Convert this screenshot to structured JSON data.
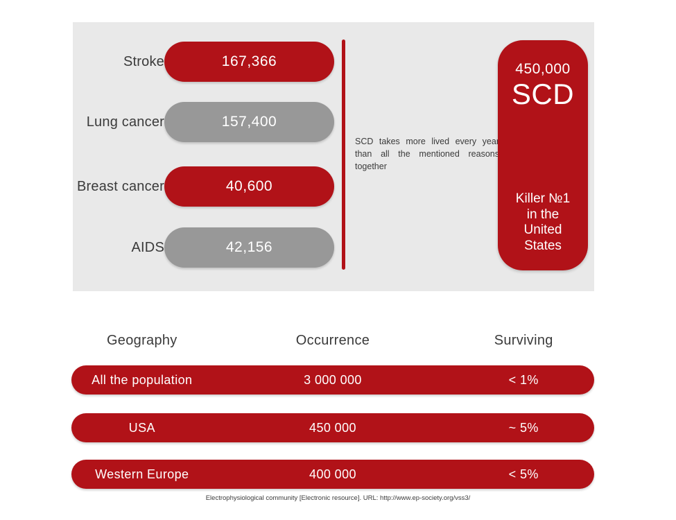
{
  "chart_data": [
    {
      "type": "bar",
      "title": "",
      "categories": [
        "Stroke",
        "Lung cancer",
        "Breast cancer",
        "AIDS"
      ],
      "values": [
        167366,
        157400,
        40600,
        42156
      ],
      "series_colors": [
        "#b11218",
        "#989898",
        "#b11218",
        "#989898"
      ],
      "annotation": "SCD takes more lived every year than all the mentioned reasons together",
      "highlight": {
        "label": "SCD",
        "value": 450000,
        "note": "Killer №1 in the United States"
      },
      "legend": false,
      "grid": false
    },
    {
      "type": "table",
      "columns": [
        "Geography",
        "Occurrence",
        "Surviving"
      ],
      "rows": [
        [
          "All the population",
          "3 000 000",
          "< 1%"
        ],
        [
          "USA",
          "450 000",
          "~ 5%"
        ],
        [
          "Western Europe",
          "400 000",
          "< 5%"
        ]
      ]
    }
  ],
  "comparison": {
    "items": [
      {
        "label": "Stroke",
        "value": "167,366"
      },
      {
        "label": "Lung cancer",
        "value": "157,400"
      },
      {
        "label": "Breast cancer",
        "value": "40,600"
      },
      {
        "label": "AIDS",
        "value": "42,156"
      }
    ],
    "note": "SCD takes more lived every year than all the mentioned reasons together",
    "highlight": {
      "value": "450,000",
      "acronym": "SCD",
      "caption": "Killer №1\nin the\nUnited\nStates"
    }
  },
  "table": {
    "headers": [
      "Geography",
      "Occurrence",
      "Surviving"
    ],
    "rows": [
      [
        "All the population",
        "3 000 000",
        "< 1%"
      ],
      [
        "USA",
        "450 000",
        "~ 5%"
      ],
      [
        "Western Europe",
        "400 000",
        "< 5%"
      ]
    ]
  },
  "footer": {
    "citation": "Electrophysiological community [Electronic resource]. URL: http://www.ep-society.org/vss3/"
  },
  "colors": {
    "red": "#b11218",
    "gray": "#989898",
    "panel_bg": "#e9e9e9",
    "text_dark": "#3a3a3a"
  }
}
